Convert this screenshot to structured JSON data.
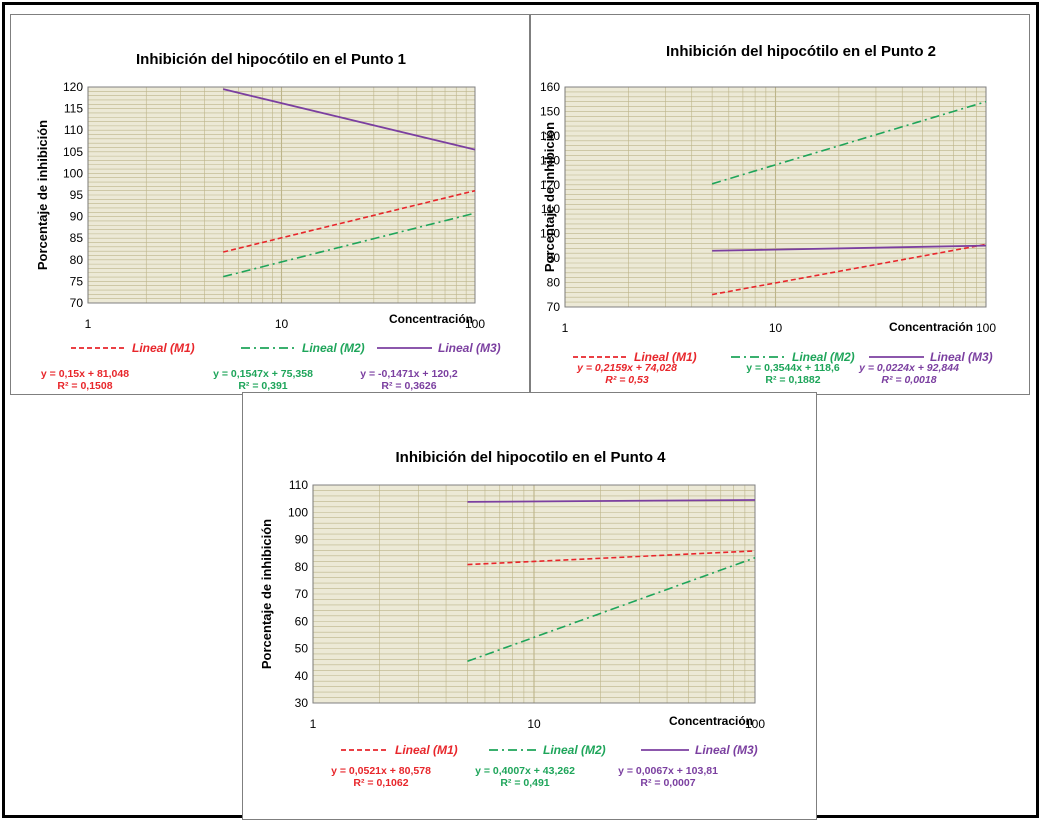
{
  "colors": {
    "m1": "#e8262b",
    "m2": "#1ea55a",
    "m3": "#7b3fa0",
    "plot_bg": "#ece9d6",
    "grid": "#bdb58a"
  },
  "chart_data": [
    {
      "type": "line",
      "title": "Inhibición del hipocótilo en el Punto 1",
      "xlabel": "Concentración",
      "ylabel": "Porcentaje de inhibición",
      "x_scale": "log",
      "xlim": [
        1,
        100
      ],
      "ylim": [
        70,
        120
      ],
      "x_ticks": [
        "1",
        "10",
        "100"
      ],
      "y_ticks": [
        "70",
        "75",
        "80",
        "85",
        "90",
        "95",
        "100",
        "105",
        "110",
        "115",
        "120"
      ],
      "series": [
        {
          "name": "Lineal (M1)",
          "color_key": "m1",
          "style": "dash",
          "x": [
            5,
            100
          ],
          "y": [
            81.8,
            96.0
          ]
        },
        {
          "name": "Lineal (M2)",
          "color_key": "m2",
          "style": "dashdot",
          "x": [
            5,
            100
          ],
          "y": [
            76.1,
            90.8
          ]
        },
        {
          "name": "Lineal (M3)",
          "color_key": "m3",
          "style": "solid",
          "x": [
            5,
            100
          ],
          "y": [
            119.5,
            105.5
          ]
        }
      ],
      "equations": [
        {
          "line1": "y = 0,15x + 81,048",
          "line2": "R² = 0,1508"
        },
        {
          "line1": "y = 0,1547x + 75,358",
          "line2": "R² = 0,391"
        },
        {
          "line1": "y = -0,1471x + 120,2",
          "line2": "R² = 0,3626"
        }
      ]
    },
    {
      "type": "line",
      "title": "Inhibición del hipocótilo en el Punto 2",
      "xlabel": "Concentración",
      "ylabel": "Porcentaje de inhibición",
      "x_scale": "log",
      "xlim": [
        1,
        100
      ],
      "ylim": [
        70,
        160
      ],
      "x_ticks": [
        "1",
        "10",
        "100"
      ],
      "y_ticks": [
        "70",
        "80",
        "90",
        "100",
        "110",
        "120",
        "130",
        "140",
        "150",
        "160"
      ],
      "series": [
        {
          "name": "Lineal (M1)",
          "color_key": "m1",
          "style": "dash",
          "x": [
            5,
            100
          ],
          "y": [
            75.1,
            95.6
          ]
        },
        {
          "name": "Lineal (M2)",
          "color_key": "m2",
          "style": "dashdot",
          "x": [
            5,
            100
          ],
          "y": [
            120.4,
            154.0
          ]
        },
        {
          "name": "Lineal (M3)",
          "color_key": "m3",
          "style": "solid",
          "x": [
            5,
            100
          ],
          "y": [
            93.0,
            95.1
          ]
        }
      ],
      "equations": [
        {
          "line1": "y = 0,2159x + 74,028",
          "line2": "R² = 0,53"
        },
        {
          "line1": "y = 0,3544x + 118,6",
          "line2": "R² = 0,1882"
        },
        {
          "line1": "y = 0,0224x + 92,844",
          "line2": "R² = 0,0018"
        }
      ]
    },
    {
      "type": "line",
      "title": "Inhibición del hipocotilo en el Punto 4",
      "xlabel": "Concentración",
      "ylabel": "Porcentaje de inhibición",
      "x_scale": "log",
      "xlim": [
        1,
        100
      ],
      "ylim": [
        30,
        110
      ],
      "x_ticks": [
        "1",
        "10",
        "100"
      ],
      "y_ticks": [
        "30",
        "40",
        "50",
        "60",
        "70",
        "80",
        "90",
        "100",
        "110"
      ],
      "series": [
        {
          "name": "Lineal (M1)",
          "color_key": "m1",
          "style": "dash",
          "x": [
            5,
            100
          ],
          "y": [
            80.8,
            85.8
          ]
        },
        {
          "name": "Lineal (M2)",
          "color_key": "m2",
          "style": "dashdot",
          "x": [
            5,
            100
          ],
          "y": [
            45.3,
            83.3
          ]
        },
        {
          "name": "Lineal (M3)",
          "color_key": "m3",
          "style": "solid",
          "x": [
            5,
            100
          ],
          "y": [
            103.8,
            104.5
          ]
        }
      ],
      "equations": [
        {
          "line1": "y = 0,0521x + 80,578",
          "line2": "R² = 0,1062"
        },
        {
          "line1": "y = 0,4007x + 43,262",
          "line2": "R² = 0,491"
        },
        {
          "line1": "y = 0,0067x + 103,81",
          "line2": "R² = 0,0007"
        }
      ]
    }
  ]
}
